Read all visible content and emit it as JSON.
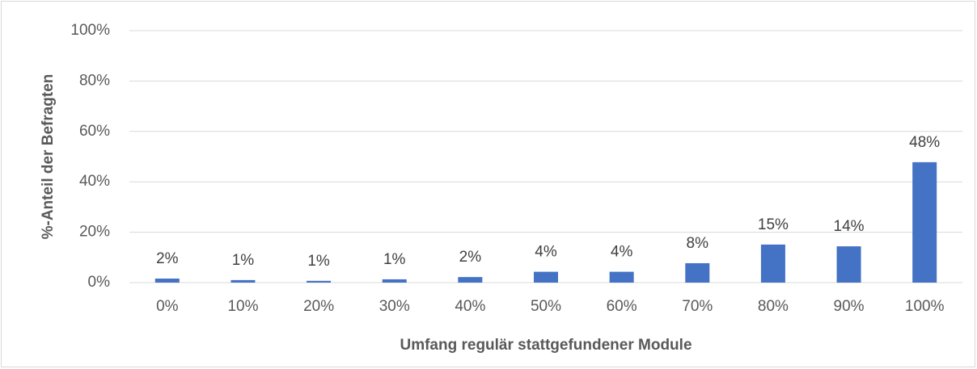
{
  "chart_data": {
    "type": "bar",
    "x_label": "Umfang regulär stattgefundener Module",
    "y_label": "%-Anteil der Befragten",
    "categories": [
      "0%",
      "10%",
      "20%",
      "30%",
      "40%",
      "50%",
      "60%",
      "70%",
      "80%",
      "90%",
      "100%"
    ],
    "values": [
      1.6,
      1.0,
      0.7,
      1.3,
      2.2,
      4.3,
      4.3,
      7.7,
      15.1,
      14.4,
      47.8
    ],
    "value_labels": [
      "2%",
      "1%",
      "1%",
      "1%",
      "2%",
      "4%",
      "4%",
      "8%",
      "15%",
      "14%",
      "48%"
    ],
    "color": "#4472c4",
    "ylim": [
      0,
      100
    ],
    "yticks": [
      {
        "value": 0,
        "label": "0%"
      },
      {
        "value": 20,
        "label": "20%"
      },
      {
        "value": 40,
        "label": "40%"
      },
      {
        "value": 60,
        "label": "60%"
      },
      {
        "value": 80,
        "label": "80%"
      },
      {
        "value": 100,
        "label": "100%"
      }
    ],
    "grid": true
  }
}
